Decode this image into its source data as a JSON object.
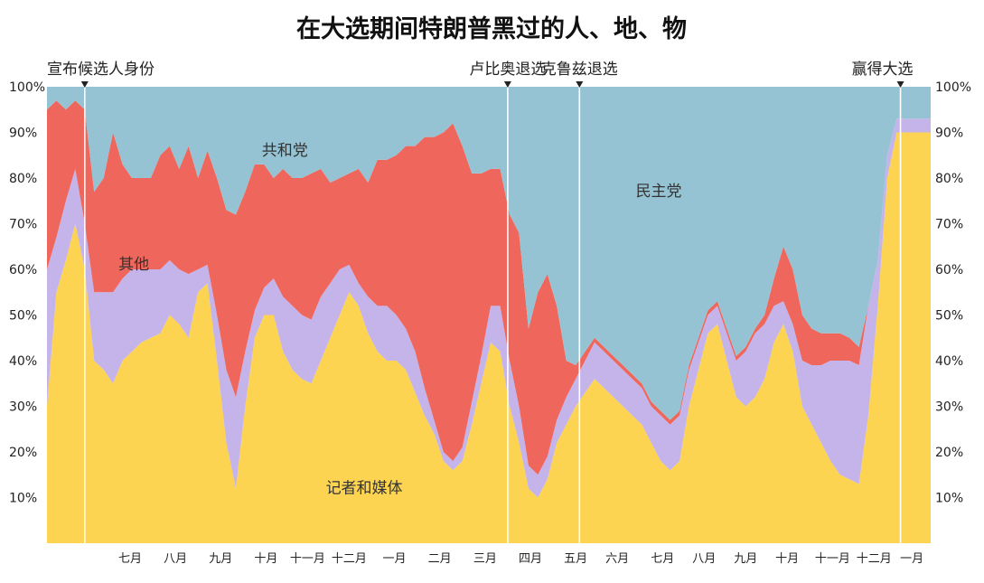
{
  "chart_data": {
    "type": "area",
    "stacked": true,
    "title": "在大选期间特朗普黑过的人、地、物",
    "ylim": [
      0,
      100
    ],
    "y_ticks": [
      "10%",
      "20%",
      "30%",
      "40%",
      "50%",
      "60%",
      "70%",
      "80%",
      "90%",
      "100%"
    ],
    "month_labels": [
      "七月",
      "八月",
      "九月",
      "十月",
      "十一月",
      "十二月",
      "一月",
      "二月",
      "三月",
      "四月",
      "五月",
      "六月",
      "七月",
      "八月",
      "九月",
      "十月",
      "十一月",
      "十二月",
      "一月"
    ],
    "month_positions": [
      2.2,
      3.4,
      4.6,
      5.8,
      6.9,
      8.0,
      9.2,
      10.4,
      11.6,
      12.8,
      14.0,
      15.1,
      16.3,
      17.4,
      18.5,
      19.6,
      20.8,
      21.9,
      22.9
    ],
    "x_range": [
      0,
      23.4
    ],
    "x": [
      0,
      0.25,
      0.5,
      0.75,
      1,
      1.25,
      1.5,
      1.75,
      2,
      2.25,
      2.5,
      2.75,
      3,
      3.25,
      3.5,
      3.75,
      4,
      4.25,
      4.5,
      4.75,
      5,
      5.25,
      5.5,
      5.75,
      6,
      6.25,
      6.5,
      6.75,
      7,
      7.25,
      7.5,
      7.75,
      8,
      8.25,
      8.5,
      8.75,
      9,
      9.25,
      9.5,
      9.75,
      10,
      10.25,
      10.5,
      10.75,
      11,
      11.25,
      11.5,
      11.75,
      12,
      12.25,
      12.5,
      12.75,
      13,
      13.25,
      13.5,
      13.75,
      14,
      14.25,
      14.5,
      14.75,
      15,
      15.25,
      15.5,
      15.75,
      16,
      16.25,
      16.5,
      16.75,
      17,
      17.25,
      17.5,
      17.75,
      18,
      18.25,
      18.5,
      18.75,
      19,
      19.25,
      19.5,
      19.75,
      20,
      20.25,
      20.5,
      20.75,
      21,
      21.25,
      21.5,
      21.75,
      22,
      22.25,
      22.5,
      22.75,
      23,
      23.25,
      23.4
    ],
    "series": [
      {
        "name": "记者和媒体",
        "color": "#FDD451",
        "values": [
          30,
          55,
          62,
          70,
          60,
          40,
          38,
          35,
          40,
          42,
          44,
          45,
          46,
          50,
          48,
          45,
          55,
          57,
          40,
          22,
          12,
          30,
          45,
          50,
          50,
          42,
          38,
          36,
          35,
          40,
          45,
          50,
          55,
          52,
          46,
          42,
          40,
          40,
          38,
          33,
          28,
          24,
          18,
          16,
          18,
          26,
          35,
          44,
          42,
          30,
          22,
          12,
          10,
          14,
          22,
          26,
          30,
          33,
          36,
          34,
          32,
          30,
          28,
          26,
          22,
          18,
          16,
          18,
          30,
          38,
          46,
          48,
          40,
          32,
          30,
          32,
          36,
          44,
          48,
          42,
          30,
          26,
          22,
          18,
          15,
          14,
          13,
          28,
          52,
          80,
          90,
          90,
          90,
          90,
          90
        ]
      },
      {
        "name": "其他",
        "color": "#C5B4EA",
        "values": [
          30,
          12,
          13,
          12,
          10,
          15,
          17,
          20,
          18,
          18,
          16,
          15,
          14,
          12,
          12,
          14,
          5,
          4,
          10,
          16,
          20,
          12,
          6,
          6,
          8,
          12,
          14,
          14,
          14,
          14,
          12,
          10,
          6,
          5,
          8,
          10,
          12,
          10,
          9,
          9,
          6,
          3,
          2,
          2,
          3,
          5,
          6,
          8,
          10,
          10,
          8,
          5,
          5,
          5,
          5,
          6,
          6,
          7,
          8,
          8,
          8,
          8,
          8,
          8,
          8,
          10,
          10,
          10,
          8,
          6,
          4,
          4,
          6,
          8,
          12,
          14,
          12,
          8,
          5,
          6,
          10,
          13,
          17,
          22,
          25,
          26,
          26,
          24,
          10,
          5,
          3,
          3,
          3,
          3,
          3
        ]
      },
      {
        "name": "共和党",
        "color": "#EF675C",
        "values": [
          35,
          30,
          20,
          15,
          25,
          22,
          25,
          35,
          25,
          20,
          20,
          20,
          25,
          25,
          22,
          28,
          20,
          25,
          30,
          35,
          40,
          35,
          32,
          27,
          22,
          28,
          28,
          30,
          32,
          28,
          22,
          20,
          20,
          25,
          25,
          32,
          32,
          35,
          40,
          45,
          55,
          62,
          70,
          74,
          66,
          50,
          40,
          30,
          30,
          32,
          38,
          30,
          40,
          40,
          25,
          8,
          3,
          2,
          1,
          1,
          1,
          1,
          1,
          1,
          1,
          1,
          1,
          1,
          1,
          1,
          1,
          1,
          1,
          1,
          1,
          1,
          2,
          6,
          12,
          12,
          10,
          8,
          7,
          6,
          6,
          5,
          4,
          0,
          0,
          0,
          0,
          0,
          0,
          0,
          0
        ]
      },
      {
        "name": "民主党",
        "color": "#96C3D3",
        "values": [
          5,
          3,
          5,
          3,
          5,
          23,
          20,
          10,
          17,
          20,
          20,
          20,
          15,
          13,
          18,
          13,
          20,
          14,
          20,
          27,
          28,
          23,
          17,
          17,
          20,
          18,
          20,
          20,
          19,
          18,
          21,
          20,
          19,
          18,
          21,
          16,
          16,
          15,
          13,
          13,
          11,
          11,
          10,
          8,
          13,
          19,
          19,
          18,
          18,
          28,
          32,
          53,
          45,
          41,
          48,
          60,
          61,
          58,
          55,
          57,
          59,
          61,
          63,
          65,
          69,
          71,
          73,
          71,
          61,
          55,
          49,
          47,
          53,
          59,
          57,
          53,
          50,
          42,
          35,
          40,
          50,
          53,
          54,
          54,
          54,
          55,
          57,
          48,
          38,
          15,
          7,
          7,
          7,
          7,
          7
        ]
      }
    ],
    "area_labels": [
      "共和党",
      "其他",
      "民主党",
      "记者和媒体"
    ],
    "events": [
      {
        "label": "宣布候选人身份",
        "x": 1.0
      },
      {
        "label": "卢比奥退选",
        "x": 12.2
      },
      {
        "label": "克鲁兹退选",
        "x": 14.1
      },
      {
        "label": "赢得大选",
        "x": 22.6
      }
    ]
  }
}
